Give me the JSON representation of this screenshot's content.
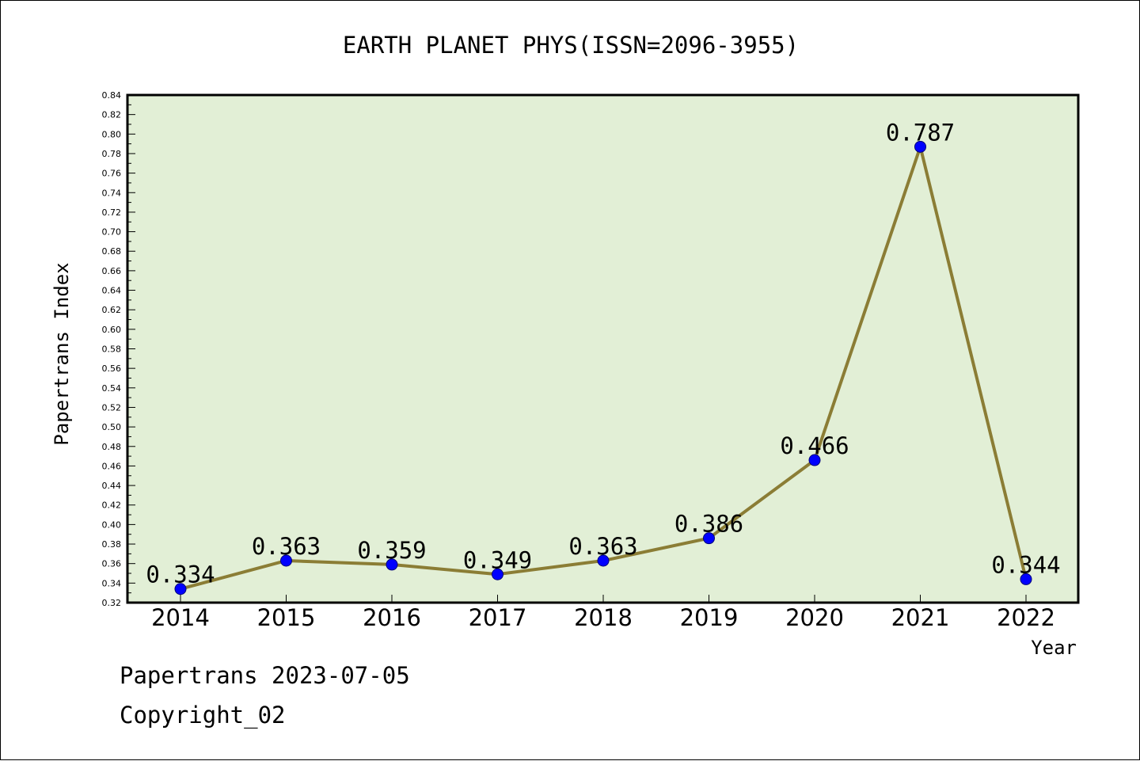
{
  "chart_data": {
    "type": "line",
    "title": "EARTH PLANET PHYS(ISSN=2096-3955)",
    "xlabel": "Year",
    "ylabel": "Papertrans Index",
    "categories": [
      "2014",
      "2015",
      "2016",
      "2017",
      "2018",
      "2019",
      "2020",
      "2021",
      "2022"
    ],
    "values": [
      0.334,
      0.363,
      0.359,
      0.349,
      0.363,
      0.386,
      0.466,
      0.787,
      0.344
    ],
    "data_labels": [
      "0.334",
      "0.363",
      "0.359",
      "0.349",
      "0.363",
      "0.386",
      "0.466",
      "0.787",
      "0.344"
    ],
    "ylim": [
      0.32,
      0.84
    ],
    "yticks": [
      "0.32",
      "0.34",
      "0.36",
      "0.38",
      "0.40",
      "0.42",
      "0.44",
      "0.46",
      "0.48",
      "0.50",
      "0.52",
      "0.54",
      "0.56",
      "0.58",
      "0.60",
      "0.62",
      "0.64",
      "0.66",
      "0.68",
      "0.70",
      "0.72",
      "0.74",
      "0.76",
      "0.78",
      "0.80",
      "0.82",
      "0.84"
    ],
    "grid": false,
    "colors": {
      "plot_background": "#e2efd6",
      "line": "#8b7d35",
      "marker": "#0000ff"
    }
  },
  "footer": {
    "line1": "Papertrans 2023-07-05",
    "line2": "Copyright_02"
  }
}
